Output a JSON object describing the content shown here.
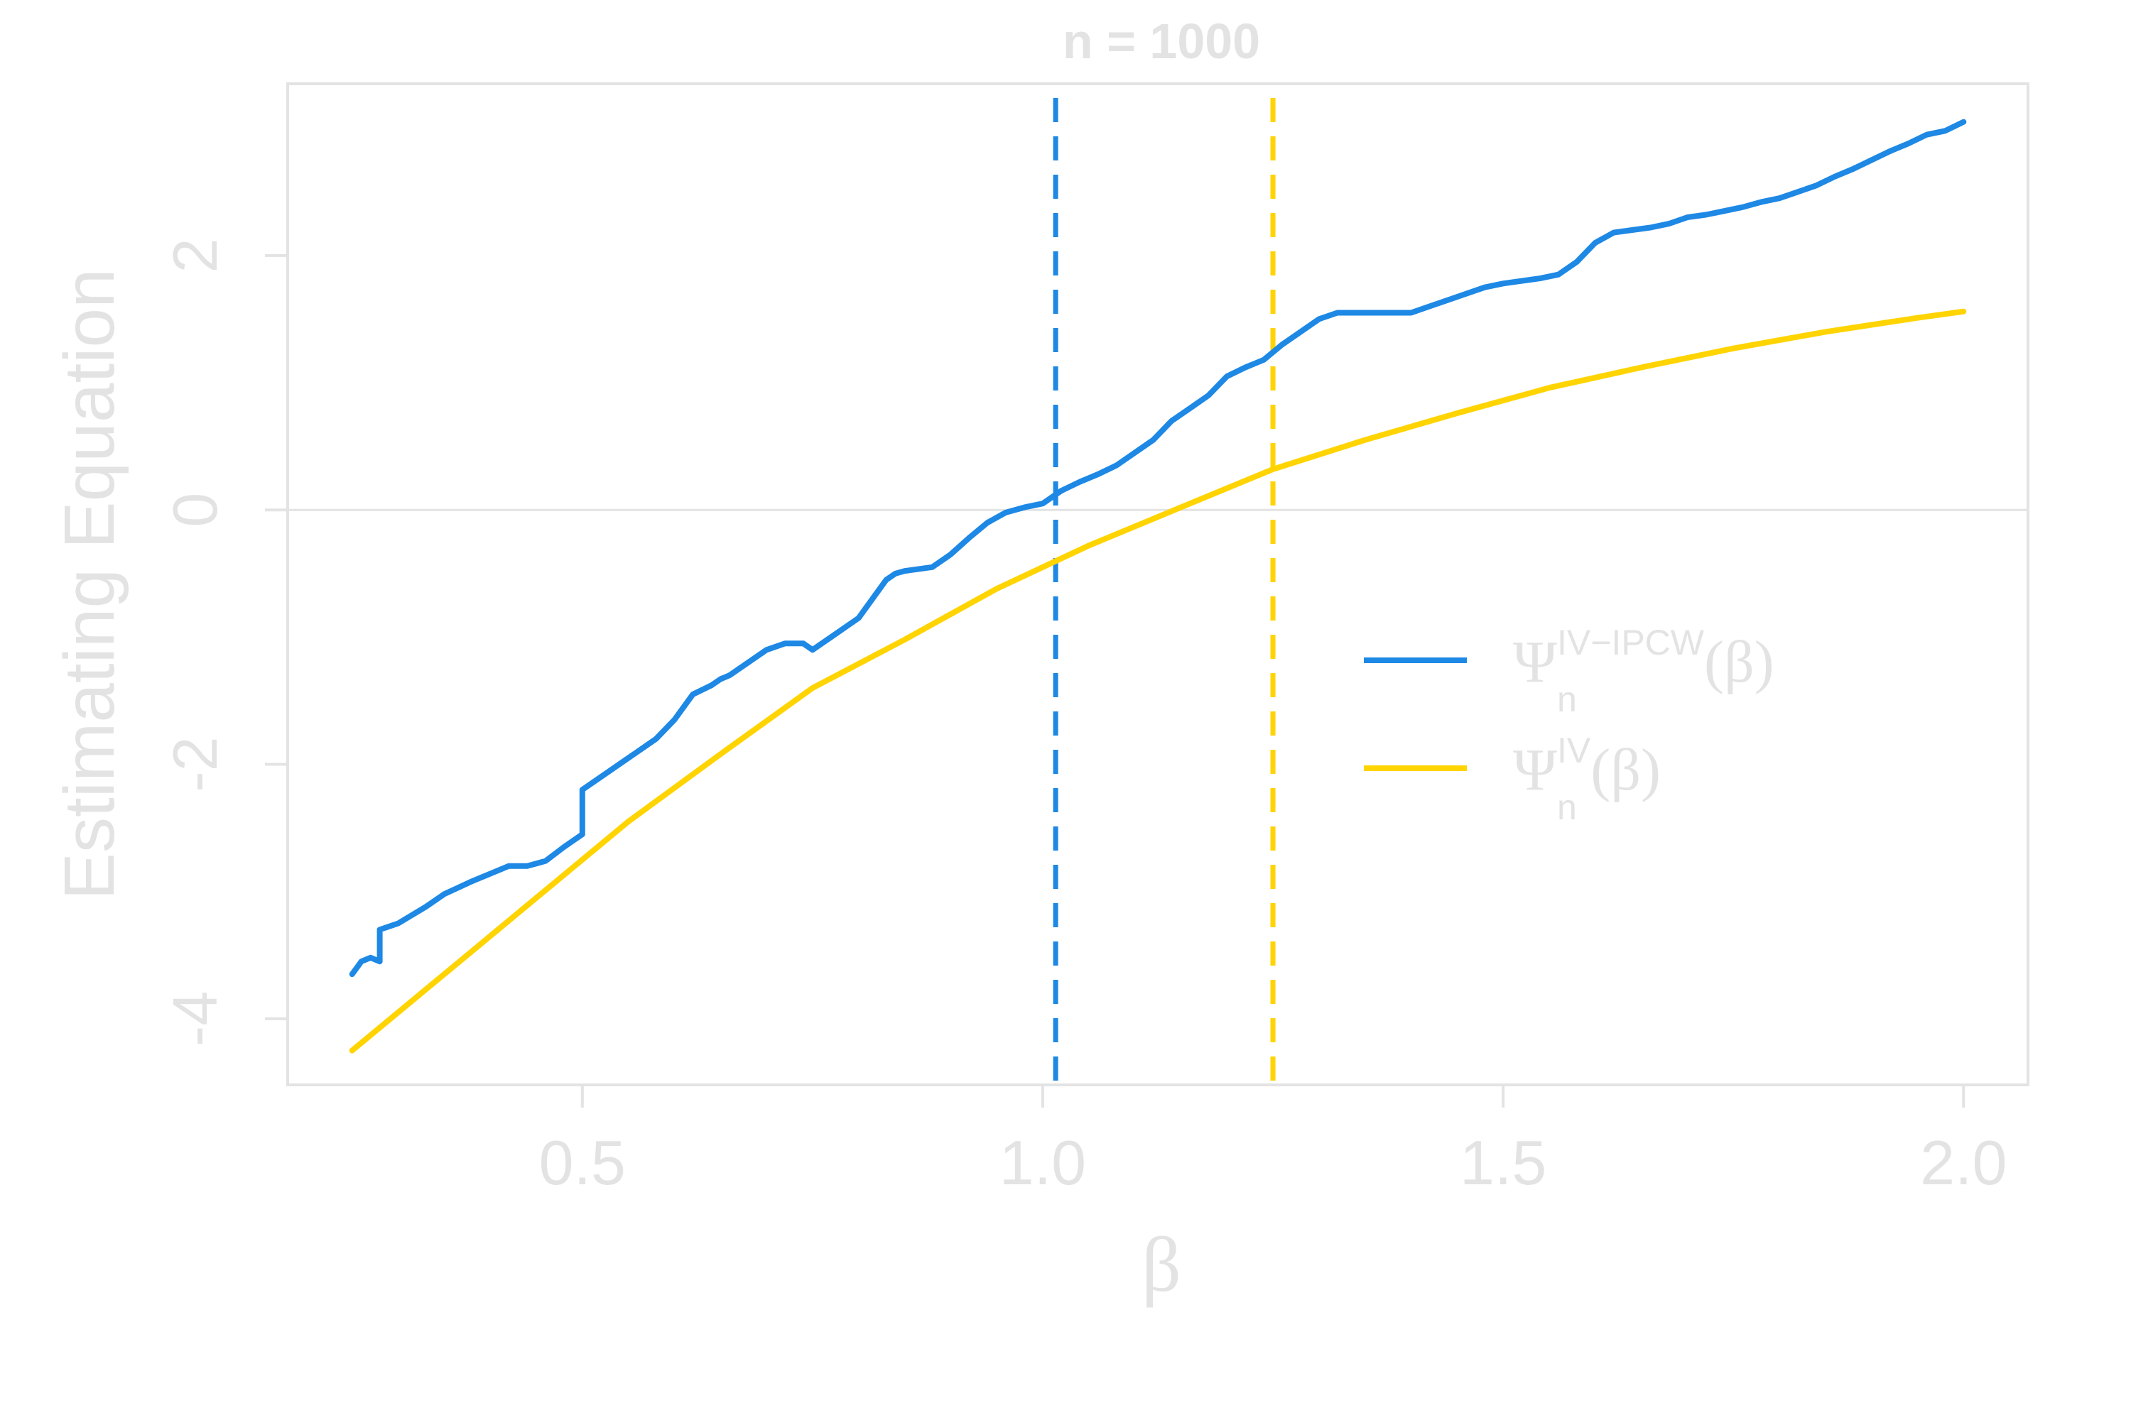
{
  "chart_data": {
    "type": "line",
    "title": "n = 1000",
    "xlabel": "β",
    "ylabel": "Estimating Equation",
    "xlim": [
      0.18,
      2.07
    ],
    "ylim": [
      -4.52,
      3.35
    ],
    "xticks": [
      0.5,
      1.0,
      1.5,
      2.0
    ],
    "xtick_labels": [
      "0.5",
      "1.0",
      "1.5",
      "2.0"
    ],
    "yticks": [
      -4,
      -2,
      0,
      2
    ],
    "ytick_labels": [
      "-4",
      "-2",
      "0",
      "2"
    ],
    "grid": false,
    "hline": 0,
    "legend_position": "right",
    "series": [
      {
        "name_main": "Ψ",
        "name_sup": "IV−IPCW",
        "name_sub": "n",
        "name_suffix": "(β)",
        "color": "#1E88E5",
        "x": [
          0.25,
          0.26,
          0.27,
          0.28,
          0.28,
          0.3,
          0.33,
          0.35,
          0.38,
          0.4,
          0.42,
          0.44,
          0.46,
          0.48,
          0.49,
          0.5,
          0.5,
          0.52,
          0.55,
          0.58,
          0.6,
          0.62,
          0.64,
          0.65,
          0.66,
          0.68,
          0.7,
          0.72,
          0.74,
          0.75,
          0.76,
          0.78,
          0.8,
          0.82,
          0.83,
          0.84,
          0.85,
          0.88,
          0.9,
          0.92,
          0.94,
          0.96,
          0.98,
          1.0,
          1.02,
          1.04,
          1.06,
          1.08,
          1.1,
          1.12,
          1.14,
          1.16,
          1.18,
          1.2,
          1.22,
          1.24,
          1.26,
          1.28,
          1.3,
          1.32,
          1.34,
          1.36,
          1.38,
          1.4,
          1.42,
          1.44,
          1.46,
          1.48,
          1.5,
          1.52,
          1.54,
          1.56,
          1.58,
          1.6,
          1.62,
          1.64,
          1.66,
          1.68,
          1.7,
          1.72,
          1.74,
          1.76,
          1.78,
          1.8,
          1.82,
          1.84,
          1.86,
          1.88,
          1.9,
          1.92,
          1.94,
          1.96,
          1.98,
          2.0
        ],
        "y": [
          -3.65,
          -3.55,
          -3.52,
          -3.55,
          -3.3,
          -3.25,
          -3.12,
          -3.02,
          -2.92,
          -2.86,
          -2.8,
          -2.8,
          -2.76,
          -2.65,
          -2.6,
          -2.55,
          -2.2,
          -2.1,
          -1.95,
          -1.8,
          -1.65,
          -1.45,
          -1.38,
          -1.33,
          -1.3,
          -1.2,
          -1.1,
          -1.05,
          -1.05,
          -1.1,
          -1.05,
          -0.95,
          -0.85,
          -0.65,
          -0.55,
          -0.5,
          -0.48,
          -0.45,
          -0.35,
          -0.22,
          -0.1,
          -0.02,
          0.02,
          0.05,
          0.15,
          0.22,
          0.28,
          0.35,
          0.45,
          0.55,
          0.7,
          0.8,
          0.9,
          1.05,
          1.12,
          1.18,
          1.3,
          1.4,
          1.5,
          1.55,
          1.55,
          1.55,
          1.55,
          1.55,
          1.6,
          1.65,
          1.7,
          1.75,
          1.78,
          1.8,
          1.82,
          1.85,
          1.95,
          2.1,
          2.18,
          2.2,
          2.22,
          2.25,
          2.3,
          2.32,
          2.35,
          2.38,
          2.42,
          2.45,
          2.5,
          2.55,
          2.62,
          2.68,
          2.75,
          2.82,
          2.88,
          2.95,
          2.98,
          3.05
        ]
      },
      {
        "name_main": "Ψ",
        "name_sup": "IV",
        "name_sub": "n",
        "name_suffix": "(β)",
        "color": "#FFD400",
        "x": [
          0.25,
          0.35,
          0.45,
          0.55,
          0.65,
          0.75,
          0.85,
          0.95,
          1.05,
          1.15,
          1.25,
          1.35,
          1.45,
          1.55,
          1.65,
          1.75,
          1.85,
          1.95,
          2.0
        ],
        "y": [
          -4.25,
          -3.65,
          -3.05,
          -2.45,
          -1.92,
          -1.4,
          -1.02,
          -0.62,
          -0.28,
          0.02,
          0.32,
          0.55,
          0.76,
          0.96,
          1.12,
          1.27,
          1.4,
          1.51,
          1.56
        ]
      }
    ],
    "vlines": [
      {
        "x": 1.014,
        "color": "#1E88E5",
        "style": "dashed"
      },
      {
        "x": 1.25,
        "color": "#FFD400",
        "style": "dashed"
      }
    ]
  }
}
